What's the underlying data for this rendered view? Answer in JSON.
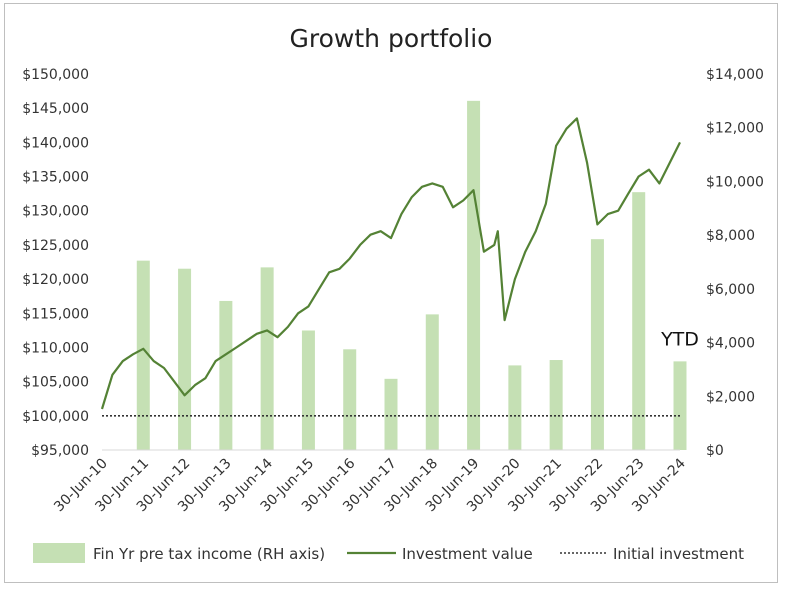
{
  "chart_data": {
    "type": "bar+line",
    "title": "Growth portfolio",
    "left_axis": {
      "ylim": [
        95000,
        150000
      ],
      "ticks": [
        95000,
        100000,
        105000,
        110000,
        115000,
        120000,
        125000,
        130000,
        135000,
        140000,
        145000,
        150000
      ],
      "tick_labels": [
        "$95,000",
        "$100,000",
        "$105,000",
        "$110,000",
        "$115,000",
        "$120,000",
        "$125,000",
        "$130,000",
        "$135,000",
        "$140,000",
        "$145,000",
        "$150,000"
      ]
    },
    "right_axis": {
      "ylim": [
        0,
        14000
      ],
      "ticks": [
        0,
        2000,
        4000,
        6000,
        8000,
        10000,
        12000,
        14000
      ],
      "tick_labels": [
        "$0",
        "$2,000",
        "$4,000",
        "$6,000",
        "$8,000",
        "$10,000",
        "$12,000",
        "$14,000"
      ]
    },
    "x_axis": {
      "range": [
        "2010-06-30",
        "2024-06-30"
      ],
      "tick_labels": [
        "30-Jun-10",
        "30-Jun-11",
        "30-Jun-12",
        "30-Jun-13",
        "30-Jun-14",
        "30-Jun-15",
        "30-Jun-16",
        "30-Jun-17",
        "30-Jun-18",
        "30-Jun-19",
        "30-Jun-20",
        "30-Jun-21",
        "30-Jun-22",
        "30-Jun-23",
        "30-Jun-24"
      ]
    },
    "bars": {
      "name": "Fin Yr pre tax income (RH axis)",
      "color": "#c5e0b4",
      "x": [
        "30-Jun-11",
        "30-Jun-12",
        "30-Jun-13",
        "30-Jun-14",
        "30-Jun-15",
        "30-Jun-16",
        "30-Jun-17",
        "30-Jun-18",
        "30-Jun-19",
        "30-Jun-20",
        "30-Jun-21",
        "30-Jun-22",
        "30-Jun-23",
        "30-Jun-24"
      ],
      "values": [
        7050,
        6750,
        5550,
        6800,
        4450,
        3750,
        2650,
        5050,
        13000,
        3150,
        3350,
        7850,
        9600,
        3300
      ]
    },
    "line": {
      "name": "Investment value",
      "color": "#548235",
      "points": [
        [
          "2010-06-30",
          101000
        ],
        [
          "2010-09-30",
          106000
        ],
        [
          "2010-12-31",
          108000
        ],
        [
          "2011-03-31",
          109000
        ],
        [
          "2011-06-30",
          109800
        ],
        [
          "2011-09-30",
          108000
        ],
        [
          "2011-12-31",
          107000
        ],
        [
          "2012-03-31",
          105000
        ],
        [
          "2012-06-30",
          103000
        ],
        [
          "2012-09-30",
          104500
        ],
        [
          "2012-12-31",
          105500
        ],
        [
          "2013-03-31",
          108000
        ],
        [
          "2013-06-30",
          109000
        ],
        [
          "2013-09-30",
          110000
        ],
        [
          "2013-12-31",
          111000
        ],
        [
          "2014-03-31",
          112000
        ],
        [
          "2014-06-30",
          112500
        ],
        [
          "2014-09-30",
          111500
        ],
        [
          "2014-12-31",
          113000
        ],
        [
          "2015-03-31",
          115000
        ],
        [
          "2015-06-30",
          116000
        ],
        [
          "2015-09-30",
          118500
        ],
        [
          "2015-12-31",
          121000
        ],
        [
          "2016-03-31",
          121500
        ],
        [
          "2016-06-30",
          123000
        ],
        [
          "2016-09-30",
          125000
        ],
        [
          "2016-12-31",
          126500
        ],
        [
          "2017-03-31",
          127000
        ],
        [
          "2017-06-30",
          126000
        ],
        [
          "2017-09-30",
          129500
        ],
        [
          "2017-12-31",
          132000
        ],
        [
          "2018-03-31",
          133500
        ],
        [
          "2018-06-30",
          134000
        ],
        [
          "2018-09-30",
          133500
        ],
        [
          "2018-12-31",
          130500
        ],
        [
          "2019-03-31",
          131500
        ],
        [
          "2019-06-30",
          133000
        ],
        [
          "2019-09-30",
          124000
        ],
        [
          "2019-12-31",
          125000
        ],
        [
          "2020-01-31",
          127000
        ],
        [
          "2020-03-31",
          114000
        ],
        [
          "2020-06-30",
          120000
        ],
        [
          "2020-09-30",
          124000
        ],
        [
          "2020-12-31",
          127000
        ],
        [
          "2021-03-31",
          131000
        ],
        [
          "2021-06-30",
          139500
        ],
        [
          "2021-09-30",
          142000
        ],
        [
          "2021-12-31",
          143500
        ],
        [
          "2022-03-31",
          137000
        ],
        [
          "2022-06-30",
          128000
        ],
        [
          "2022-09-30",
          129500
        ],
        [
          "2022-12-31",
          130000
        ],
        [
          "2023-03-31",
          132500
        ],
        [
          "2023-06-30",
          135000
        ],
        [
          "2023-09-30",
          136000
        ],
        [
          "2023-12-31",
          134000
        ],
        [
          "2024-03-31",
          137000
        ],
        [
          "2024-06-30",
          140000
        ]
      ]
    },
    "reference_line": {
      "name": "Initial investment",
      "value": 100000,
      "style": "dotted",
      "color": "#333333"
    },
    "annotations": [
      {
        "text": "YTD",
        "x": "30-Jun-24",
        "axis": "right",
        "y": 3900
      }
    ],
    "legend": {
      "position": "bottom"
    },
    "grid": false
  }
}
